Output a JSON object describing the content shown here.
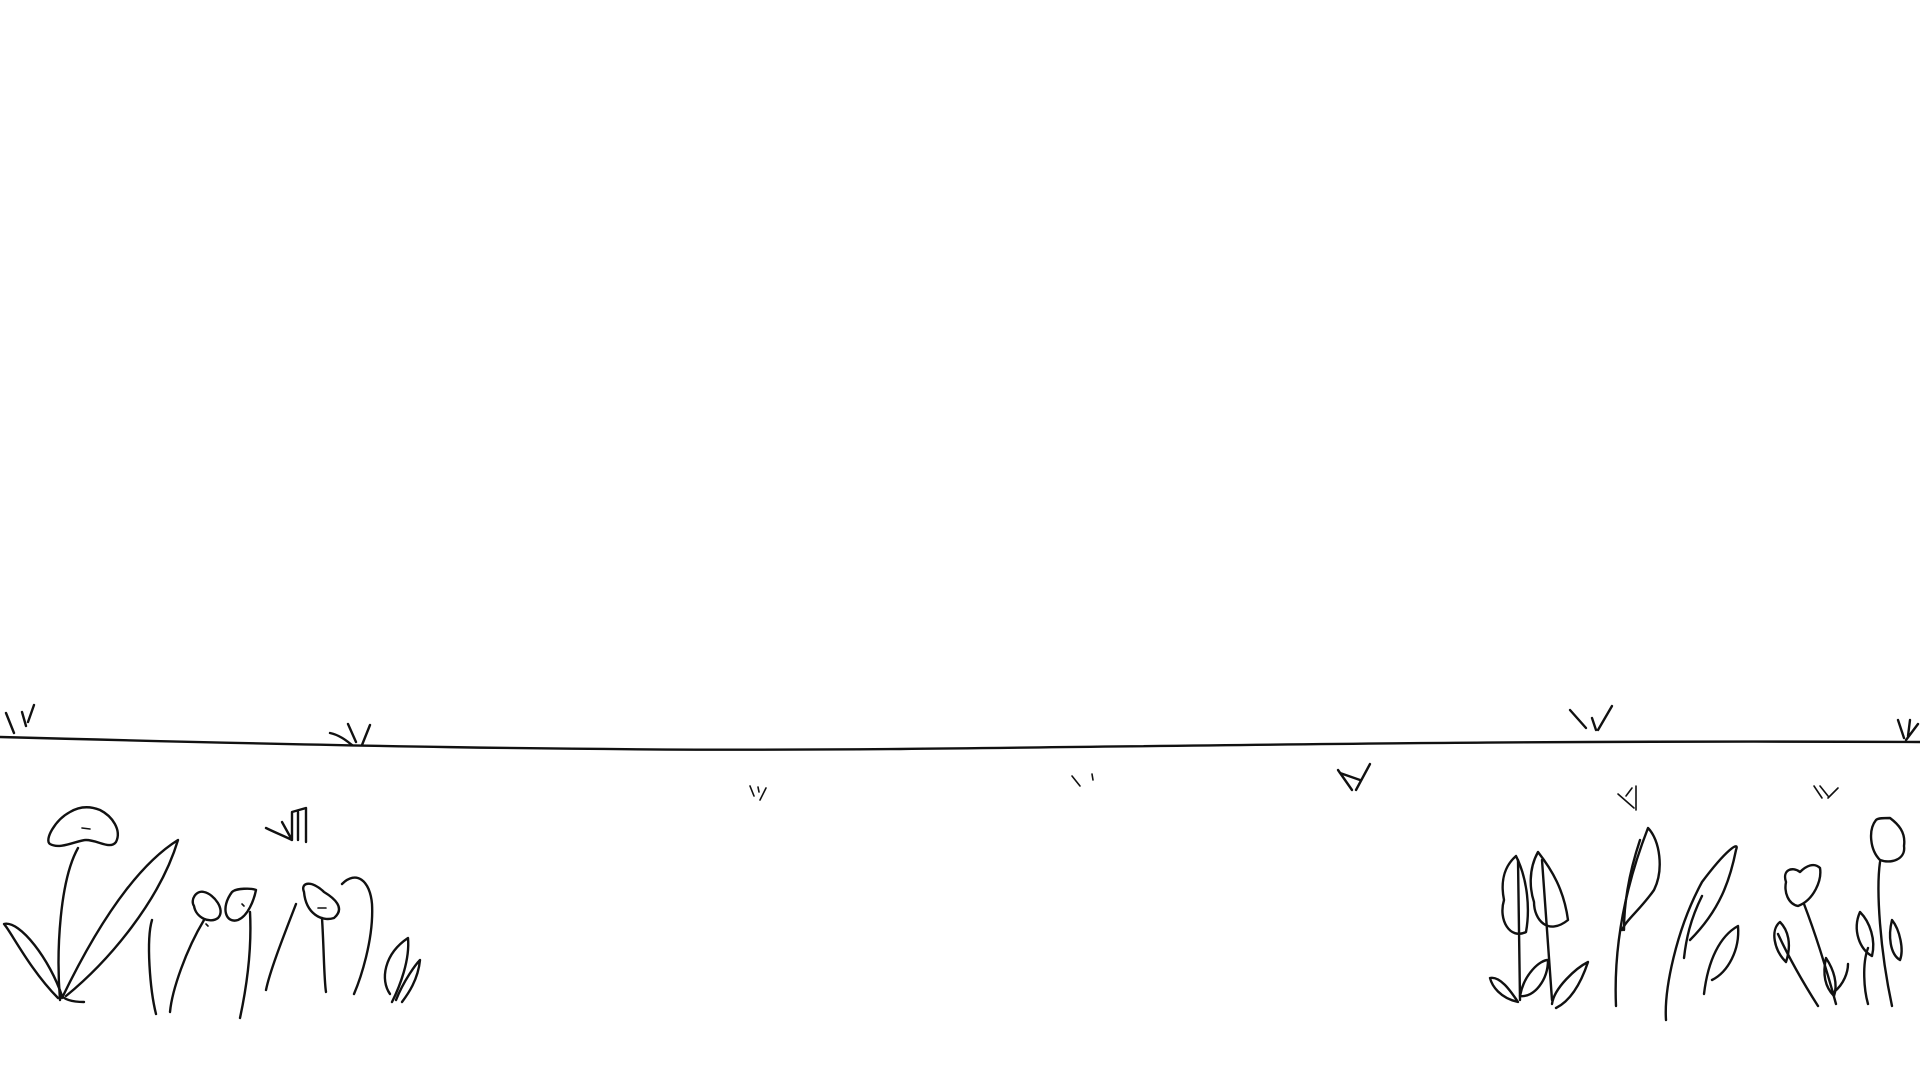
{
  "canvas": {
    "background": "#ffffff",
    "stroke_color": "#111111"
  },
  "drawing": {
    "subject": "line-sketch",
    "elements": [
      "ground-line-icon",
      "grass-tuft-icon",
      "flower-icon",
      "tulip-icon",
      "leaf-icon"
    ]
  }
}
